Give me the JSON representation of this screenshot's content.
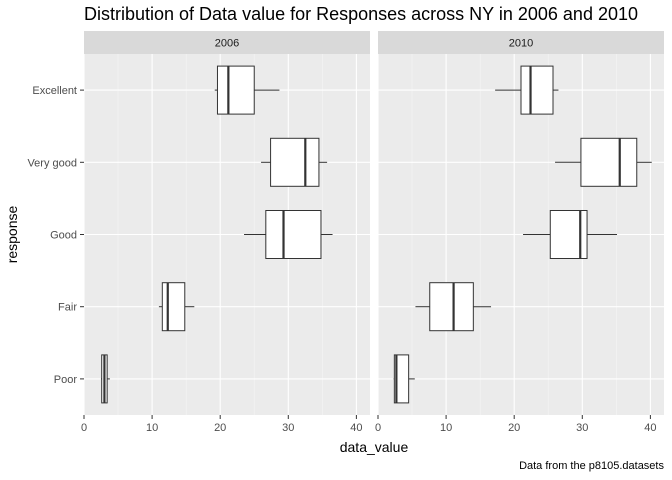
{
  "chart_data": {
    "type": "boxplot",
    "title": "Distribution of Data value for Responses across NY in 2006 and 2010",
    "caption": "Data from the p8105.datasets",
    "xlabel": "data_value",
    "ylabel": "response",
    "xlim": [
      0,
      42
    ],
    "x_ticks": [
      0,
      10,
      20,
      30,
      40
    ],
    "categories": [
      "Poor",
      "Fair",
      "Good",
      "Very good",
      "Excellent"
    ],
    "facets": [
      {
        "label": "2006",
        "boxes": [
          {
            "category": "Excellent",
            "min": 19.2,
            "q1": 19.6,
            "median": 21.2,
            "q3": 25.0,
            "max": 28.7
          },
          {
            "category": "Very good",
            "min": 26.0,
            "q1": 27.4,
            "median": 32.5,
            "q3": 34.5,
            "max": 35.7
          },
          {
            "category": "Good",
            "min": 23.5,
            "q1": 26.7,
            "median": 29.3,
            "q3": 34.8,
            "max": 36.5
          },
          {
            "category": "Fair",
            "min": 11.0,
            "q1": 11.5,
            "median": 12.3,
            "q3": 14.8,
            "max": 16.2
          },
          {
            "category": "Poor",
            "min": 2.5,
            "q1": 2.6,
            "median": 3.0,
            "q3": 3.4,
            "max": 3.8
          }
        ]
      },
      {
        "label": "2010",
        "boxes": [
          {
            "category": "Excellent",
            "min": 17.2,
            "q1": 21.0,
            "median": 22.4,
            "q3": 25.7,
            "max": 26.5
          },
          {
            "category": "Very good",
            "min": 26.0,
            "q1": 29.8,
            "median": 35.5,
            "q3": 38.0,
            "max": 40.2
          },
          {
            "category": "Good",
            "min": 21.3,
            "q1": 25.3,
            "median": 29.7,
            "q3": 30.7,
            "max": 35.1
          },
          {
            "category": "Fair",
            "min": 5.5,
            "q1": 7.6,
            "median": 11.1,
            "q3": 14.0,
            "max": 16.6
          },
          {
            "category": "Poor",
            "min": 2.3,
            "q1": 2.4,
            "median": 2.7,
            "q3": 4.5,
            "max": 5.4
          }
        ]
      }
    ]
  }
}
